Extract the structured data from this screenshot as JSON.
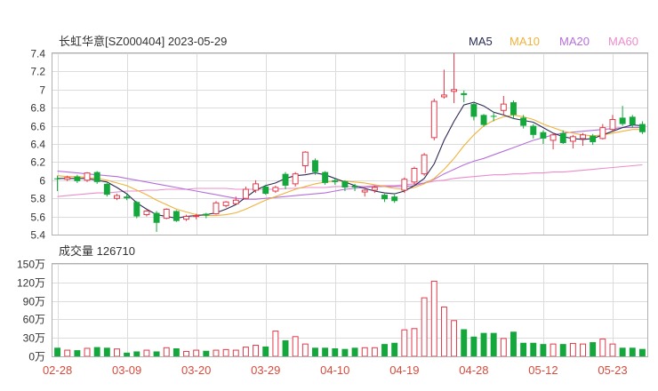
{
  "chart_data": {
    "type": "candlestick",
    "title": "长虹华意[SZ000404] 2023-05-29",
    "legend": [
      {
        "name": "MA5",
        "color": "#2b2b55"
      },
      {
        "name": "MA10",
        "color": "#f0b23a"
      },
      {
        "name": "MA20",
        "color": "#b66fdc"
      },
      {
        "name": "MA60",
        "color": "#ec8ccb"
      }
    ],
    "price_axis": {
      "ticks": [
        "7.4",
        "7.2",
        "7",
        "6.8",
        "6.6",
        "6.4",
        "6.2",
        "6",
        "5.8",
        "5.6",
        "5.4"
      ],
      "ylim": [
        5.4,
        7.4
      ]
    },
    "volume_title": "成交量 126710",
    "volume_axis": {
      "ticks": [
        "150万",
        "120万",
        "90万",
        "60万",
        "30万",
        "0万"
      ],
      "ylim": [
        0,
        150
      ]
    },
    "x_labels": [
      {
        "label": "02-28",
        "index": 0
      },
      {
        "label": "03-09",
        "index": 7
      },
      {
        "label": "03-20",
        "index": 14
      },
      {
        "label": "03-29",
        "index": 21
      },
      {
        "label": "04-10",
        "index": 28
      },
      {
        "label": "04-19",
        "index": 35
      },
      {
        "label": "04-28",
        "index": 42
      },
      {
        "label": "05-12",
        "index": 49
      },
      {
        "label": "05-23",
        "index": 56
      }
    ],
    "colors": {
      "up": "#e3394a",
      "down": "#14a83c"
    },
    "candles": [
      [
        6.02,
        6.01,
        6.05,
        5.88
      ],
      [
        6.01,
        6.03,
        6.05,
        5.99
      ],
      [
        6.04,
        5.99,
        6.06,
        5.97
      ],
      [
        6.0,
        6.08,
        6.09,
        5.98
      ],
      [
        6.09,
        5.98,
        6.1,
        5.96
      ],
      [
        5.96,
        5.84,
        5.97,
        5.82
      ],
      [
        5.8,
        5.83,
        5.85,
        5.78
      ],
      [
        5.82,
        5.8,
        5.85,
        5.78
      ],
      [
        5.76,
        5.6,
        5.77,
        5.58
      ],
      [
        5.62,
        5.66,
        5.67,
        5.6
      ],
      [
        5.64,
        5.53,
        5.66,
        5.43
      ],
      [
        5.58,
        5.68,
        5.69,
        5.57
      ],
      [
        5.66,
        5.55,
        5.67,
        5.54
      ],
      [
        5.57,
        5.6,
        5.62,
        5.55
      ],
      [
        5.6,
        5.61,
        5.63,
        5.57
      ],
      [
        5.63,
        5.61,
        5.64,
        5.58
      ],
      [
        5.63,
        5.75,
        5.77,
        5.62
      ],
      [
        5.72,
        5.76,
        5.77,
        5.7
      ],
      [
        5.74,
        5.78,
        5.82,
        5.73
      ],
      [
        5.8,
        5.9,
        5.93,
        5.79
      ],
      [
        5.89,
        5.96,
        6.0,
        5.86
      ],
      [
        5.93,
        5.85,
        5.95,
        5.84
      ],
      [
        5.88,
        5.92,
        5.94,
        5.86
      ],
      [
        6.07,
        5.94,
        6.09,
        5.9
      ],
      [
        5.96,
        6.07,
        6.09,
        5.93
      ],
      [
        6.16,
        6.31,
        6.32,
        6.08
      ],
      [
        6.22,
        6.09,
        6.24,
        6.06
      ],
      [
        6.09,
        5.97,
        6.1,
        5.95
      ],
      [
        6.0,
        5.98,
        6.02,
        5.95
      ],
      [
        5.99,
        5.92,
        6.0,
        5.88
      ],
      [
        5.94,
        5.92,
        5.96,
        5.88
      ],
      [
        5.87,
        5.89,
        5.9,
        5.82
      ],
      [
        5.89,
        5.92,
        5.94,
        5.86
      ],
      [
        5.84,
        5.79,
        5.85,
        5.76
      ],
      [
        5.82,
        5.77,
        5.84,
        5.75
      ],
      [
        5.89,
        6.01,
        6.03,
        5.86
      ],
      [
        5.98,
        6.13,
        6.15,
        5.95
      ],
      [
        6.07,
        6.28,
        6.3,
        6.05
      ],
      [
        6.47,
        6.87,
        6.9,
        6.44
      ],
      [
        6.92,
        6.94,
        7.22,
        6.9
      ],
      [
        6.98,
        7.0,
        7.4,
        6.85
      ],
      [
        6.96,
        6.94,
        6.99,
        6.86
      ],
      [
        6.84,
        6.7,
        6.85,
        6.66
      ],
      [
        6.72,
        6.61,
        6.73,
        6.59
      ],
      [
        6.71,
        6.7,
        6.75,
        6.65
      ],
      [
        6.77,
        6.84,
        6.93,
        6.72
      ],
      [
        6.86,
        6.72,
        6.88,
        6.68
      ],
      [
        6.69,
        6.6,
        6.72,
        6.57
      ],
      [
        6.6,
        6.5,
        6.62,
        6.46
      ],
      [
        6.53,
        6.46,
        6.55,
        6.4
      ],
      [
        6.44,
        6.5,
        6.52,
        6.34
      ],
      [
        6.52,
        6.41,
        6.55,
        6.4
      ],
      [
        6.43,
        6.48,
        6.5,
        6.35
      ],
      [
        6.46,
        6.5,
        6.52,
        6.38
      ],
      [
        6.49,
        6.42,
        6.51,
        6.39
      ],
      [
        6.46,
        6.58,
        6.62,
        6.45
      ],
      [
        6.56,
        6.67,
        6.72,
        6.54
      ],
      [
        6.69,
        6.62,
        6.82,
        6.6
      ],
      [
        6.7,
        6.61,
        6.72,
        6.58
      ],
      [
        6.62,
        6.53,
        6.65,
        6.51
      ]
    ],
    "volumes": [
      14,
      10,
      10,
      13,
      15,
      14,
      12,
      6,
      8,
      10,
      8,
      14,
      13,
      8,
      10,
      9,
      10,
      11,
      10,
      15,
      18,
      16,
      41,
      26,
      32,
      20,
      14,
      14,
      13,
      12,
      14,
      14,
      14,
      20,
      22,
      43,
      45,
      95,
      122,
      80,
      58,
      44,
      32,
      38,
      38,
      29,
      40,
      22,
      22,
      20,
      20,
      20,
      21,
      20,
      23,
      28,
      20,
      14,
      14,
      12
    ],
    "ma5": [
      6.02,
      6.02,
      6.02,
      6.02,
      6.0,
      5.98,
      5.92,
      5.85,
      5.75,
      5.68,
      5.62,
      5.6,
      5.58,
      5.6,
      5.61,
      5.62,
      5.64,
      5.68,
      5.73,
      5.81,
      5.89,
      5.94,
      5.97,
      6.02,
      6.05,
      6.06,
      6.08,
      6.06,
      6.02,
      5.98,
      5.94,
      5.91,
      5.88,
      5.86,
      5.85,
      5.88,
      5.94,
      6.02,
      6.18,
      6.44,
      6.65,
      6.83,
      6.86,
      6.82,
      6.75,
      6.72,
      6.68,
      6.66,
      6.64,
      6.58,
      6.52,
      6.48,
      6.46,
      6.45,
      6.46,
      6.5,
      6.54,
      6.58,
      6.61,
      6.6
    ],
    "ma10": [
      6.05,
      6.04,
      6.04,
      6.03,
      6.02,
      6.0,
      5.97,
      5.94,
      5.89,
      5.84,
      5.78,
      5.73,
      5.68,
      5.65,
      5.62,
      5.61,
      5.61,
      5.62,
      5.64,
      5.68,
      5.73,
      5.78,
      5.82,
      5.86,
      5.9,
      5.93,
      5.96,
      5.98,
      5.99,
      5.99,
      5.98,
      5.97,
      5.95,
      5.93,
      5.91,
      5.9,
      5.92,
      5.96,
      6.02,
      6.12,
      6.24,
      6.38,
      6.5,
      6.6,
      6.66,
      6.7,
      6.72,
      6.7,
      6.67,
      6.62,
      6.58,
      6.54,
      6.52,
      6.5,
      6.49,
      6.5,
      6.52,
      6.54,
      6.56,
      6.56
    ],
    "ma20": [
      6.1,
      6.09,
      6.08,
      6.07,
      6.06,
      6.05,
      6.04,
      6.02,
      6.0,
      5.98,
      5.96,
      5.94,
      5.92,
      5.9,
      5.88,
      5.86,
      5.84,
      5.82,
      5.8,
      5.79,
      5.79,
      5.8,
      5.81,
      5.82,
      5.83,
      5.84,
      5.85,
      5.86,
      5.88,
      5.9,
      5.91,
      5.92,
      5.93,
      5.93,
      5.93,
      5.93,
      5.94,
      5.97,
      6.01,
      6.07,
      6.12,
      6.17,
      6.21,
      6.24,
      6.28,
      6.32,
      6.36,
      6.4,
      6.44,
      6.47,
      6.5,
      6.52,
      6.53,
      6.54,
      6.55,
      6.56,
      6.57,
      6.58,
      6.58,
      6.58
    ],
    "ma60": [
      5.82,
      5.83,
      5.84,
      5.85,
      5.86,
      5.86,
      5.87,
      5.88,
      5.88,
      5.89,
      5.89,
      5.9,
      5.9,
      5.9,
      5.91,
      5.91,
      5.91,
      5.91,
      5.9,
      5.9,
      5.9,
      5.9,
      5.9,
      5.91,
      5.91,
      5.92,
      5.92,
      5.92,
      5.93,
      5.93,
      5.93,
      5.93,
      5.94,
      5.94,
      5.94,
      5.95,
      5.96,
      5.97,
      5.99,
      6.0,
      6.02,
      6.03,
      6.04,
      6.05,
      6.06,
      6.06,
      6.07,
      6.07,
      6.08,
      6.08,
      6.09,
      6.09,
      6.1,
      6.11,
      6.12,
      6.13,
      6.14,
      6.15,
      6.16,
      6.17
    ]
  }
}
